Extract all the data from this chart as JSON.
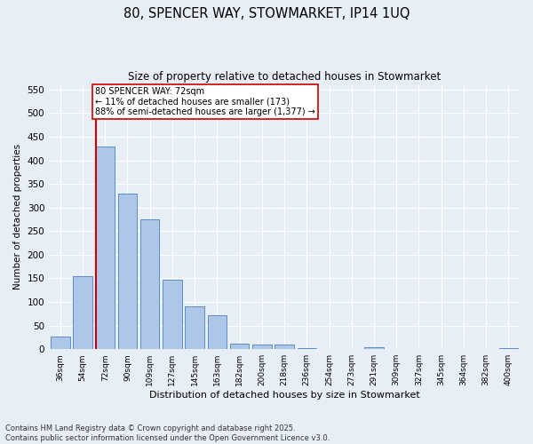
{
  "title_line1": "80, SPENCER WAY, STOWMARKET, IP14 1UQ",
  "title_line2": "Size of property relative to detached houses in Stowmarket",
  "xlabel": "Distribution of detached houses by size in Stowmarket",
  "ylabel": "Number of detached properties",
  "categories": [
    "36sqm",
    "54sqm",
    "72sqm",
    "90sqm",
    "109sqm",
    "127sqm",
    "145sqm",
    "163sqm",
    "182sqm",
    "200sqm",
    "218sqm",
    "236sqm",
    "254sqm",
    "273sqm",
    "291sqm",
    "309sqm",
    "327sqm",
    "345sqm",
    "364sqm",
    "382sqm",
    "400sqm"
  ],
  "values": [
    27,
    155,
    430,
    330,
    275,
    148,
    90,
    72,
    12,
    10,
    10,
    3,
    1,
    0,
    5,
    0,
    0,
    0,
    0,
    0,
    3
  ],
  "bar_color": "#aec6e8",
  "bar_edge_color": "#5a8fc2",
  "vline_x": 2,
  "vline_color": "#cc0000",
  "annotation_text": "80 SPENCER WAY: 72sqm\n← 11% of detached houses are smaller (173)\n88% of semi-detached houses are larger (1,377) →",
  "annotation_box_color": "#ffffff",
  "annotation_box_edge": "#cc0000",
  "ylim": [
    0,
    560
  ],
  "yticks": [
    0,
    50,
    100,
    150,
    200,
    250,
    300,
    350,
    400,
    450,
    500,
    550
  ],
  "background_color": "#e8eef5",
  "footer_line1": "Contains HM Land Registry data © Crown copyright and database right 2025.",
  "footer_line2": "Contains public sector information licensed under the Open Government Licence v3.0."
}
